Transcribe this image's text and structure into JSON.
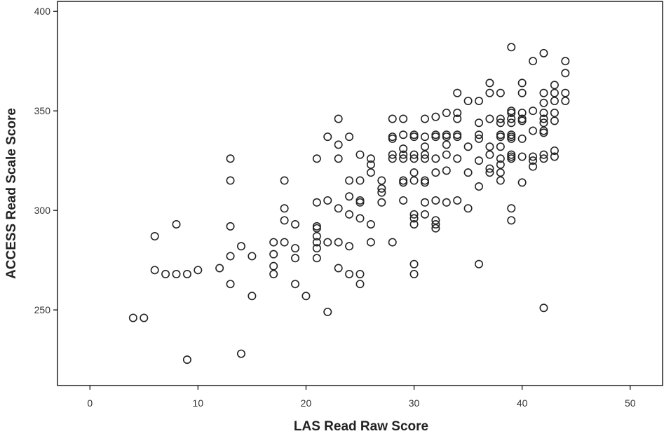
{
  "chart_data": {
    "type": "scatter",
    "title": "",
    "xlabel": "LAS Read Raw Score",
    "ylabel": "ACCESS Read Scale Score",
    "xlim": [
      -3,
      53
    ],
    "ylim": [
      212,
      405
    ],
    "xticks": [
      0,
      10,
      20,
      30,
      40,
      50
    ],
    "yticks": [
      250,
      300,
      350,
      400
    ],
    "grid": false,
    "legend": "none",
    "marker": "open-circle",
    "colors": {
      "marker": "#222222",
      "frame": "#000000",
      "background": "#ffffff"
    },
    "series": [
      {
        "points": [
          [
            4,
            246
          ],
          [
            5,
            246
          ],
          [
            6,
            287
          ],
          [
            6,
            270
          ],
          [
            7,
            268
          ],
          [
            8,
            268
          ],
          [
            8,
            293
          ],
          [
            9,
            268
          ],
          [
            9,
            225
          ],
          [
            10,
            270
          ],
          [
            12,
            271
          ],
          [
            13,
            326
          ],
          [
            13,
            315
          ],
          [
            13,
            292
          ],
          [
            13,
            277
          ],
          [
            13,
            263
          ],
          [
            14,
            282
          ],
          [
            14,
            228
          ],
          [
            15,
            277
          ],
          [
            15,
            257
          ],
          [
            17,
            284
          ],
          [
            17,
            278
          ],
          [
            17,
            272
          ],
          [
            17,
            268
          ],
          [
            18,
            315
          ],
          [
            18,
            301
          ],
          [
            18,
            295
          ],
          [
            18,
            284
          ],
          [
            19,
            293
          ],
          [
            19,
            281
          ],
          [
            19,
            276
          ],
          [
            19,
            263
          ],
          [
            20,
            257
          ],
          [
            21,
            326
          ],
          [
            21,
            304
          ],
          [
            21,
            292
          ],
          [
            21,
            291
          ],
          [
            21,
            287
          ],
          [
            21,
            284
          ],
          [
            21,
            281
          ],
          [
            21,
            276
          ],
          [
            22,
            337
          ],
          [
            22,
            305
          ],
          [
            22,
            284
          ],
          [
            22,
            249
          ],
          [
            23,
            346
          ],
          [
            23,
            333
          ],
          [
            23,
            326
          ],
          [
            23,
            301
          ],
          [
            23,
            284
          ],
          [
            23,
            271
          ],
          [
            24,
            337
          ],
          [
            24,
            315
          ],
          [
            24,
            307
          ],
          [
            24,
            298
          ],
          [
            24,
            282
          ],
          [
            24,
            268
          ],
          [
            25,
            328
          ],
          [
            25,
            315
          ],
          [
            25,
            305
          ],
          [
            25,
            304
          ],
          [
            25,
            296
          ],
          [
            25,
            268
          ],
          [
            25,
            263
          ],
          [
            26,
            326
          ],
          [
            26,
            323
          ],
          [
            26,
            319
          ],
          [
            26,
            293
          ],
          [
            26,
            284
          ],
          [
            27,
            315
          ],
          [
            27,
            311
          ],
          [
            27,
            309
          ],
          [
            27,
            304
          ],
          [
            28,
            346
          ],
          [
            28,
            337
          ],
          [
            28,
            336
          ],
          [
            28,
            328
          ],
          [
            28,
            326
          ],
          [
            28,
            284
          ],
          [
            29,
            346
          ],
          [
            29,
            338
          ],
          [
            29,
            331
          ],
          [
            29,
            328
          ],
          [
            29,
            326
          ],
          [
            29,
            315
          ],
          [
            29,
            314
          ],
          [
            29,
            305
          ],
          [
            30,
            338
          ],
          [
            30,
            337
          ],
          [
            30,
            328
          ],
          [
            30,
            326
          ],
          [
            30,
            319
          ],
          [
            30,
            315
          ],
          [
            30,
            298
          ],
          [
            30,
            296
          ],
          [
            30,
            293
          ],
          [
            30,
            273
          ],
          [
            30,
            268
          ],
          [
            31,
            346
          ],
          [
            31,
            337
          ],
          [
            31,
            332
          ],
          [
            31,
            328
          ],
          [
            31,
            326
          ],
          [
            31,
            315
          ],
          [
            31,
            314
          ],
          [
            31,
            304
          ],
          [
            31,
            298
          ],
          [
            32,
            347
          ],
          [
            32,
            338
          ],
          [
            32,
            337
          ],
          [
            32,
            326
          ],
          [
            32,
            319
          ],
          [
            32,
            305
          ],
          [
            32,
            295
          ],
          [
            32,
            293
          ],
          [
            32,
            291
          ],
          [
            33,
            349
          ],
          [
            33,
            338
          ],
          [
            33,
            337
          ],
          [
            33,
            333
          ],
          [
            33,
            328
          ],
          [
            33,
            320
          ],
          [
            33,
            304
          ],
          [
            34,
            359
          ],
          [
            34,
            349
          ],
          [
            34,
            346
          ],
          [
            34,
            338
          ],
          [
            34,
            337
          ],
          [
            34,
            326
          ],
          [
            34,
            305
          ],
          [
            35,
            355
          ],
          [
            35,
            332
          ],
          [
            35,
            319
          ],
          [
            35,
            301
          ],
          [
            36,
            355
          ],
          [
            36,
            344
          ],
          [
            36,
            338
          ],
          [
            36,
            336
          ],
          [
            36,
            325
          ],
          [
            36,
            312
          ],
          [
            36,
            273
          ],
          [
            37,
            364
          ],
          [
            37,
            359
          ],
          [
            37,
            346
          ],
          [
            37,
            332
          ],
          [
            37,
            328
          ],
          [
            37,
            321
          ],
          [
            37,
            319
          ],
          [
            38,
            359
          ],
          [
            38,
            346
          ],
          [
            38,
            344
          ],
          [
            38,
            338
          ],
          [
            38,
            337
          ],
          [
            38,
            332
          ],
          [
            38,
            326
          ],
          [
            38,
            323
          ],
          [
            38,
            319
          ],
          [
            38,
            315
          ],
          [
            39,
            382
          ],
          [
            39,
            350
          ],
          [
            39,
            349
          ],
          [
            39,
            346
          ],
          [
            39,
            344
          ],
          [
            39,
            338
          ],
          [
            39,
            337
          ],
          [
            39,
            336
          ],
          [
            39,
            328
          ],
          [
            39,
            327
          ],
          [
            39,
            326
          ],
          [
            39,
            301
          ],
          [
            39,
            295
          ],
          [
            40,
            364
          ],
          [
            40,
            359
          ],
          [
            40,
            349
          ],
          [
            40,
            346
          ],
          [
            40,
            345
          ],
          [
            40,
            336
          ],
          [
            40,
            327
          ],
          [
            40,
            314
          ],
          [
            41,
            375
          ],
          [
            41,
            350
          ],
          [
            41,
            340
          ],
          [
            41,
            327
          ],
          [
            41,
            325
          ],
          [
            41,
            322
          ],
          [
            42,
            379
          ],
          [
            42,
            359
          ],
          [
            42,
            354
          ],
          [
            42,
            349
          ],
          [
            42,
            346
          ],
          [
            42,
            344
          ],
          [
            42,
            340
          ],
          [
            42,
            339
          ],
          [
            42,
            328
          ],
          [
            42,
            326
          ],
          [
            42,
            251
          ],
          [
            43,
            363
          ],
          [
            43,
            359
          ],
          [
            43,
            355
          ],
          [
            43,
            349
          ],
          [
            43,
            345
          ],
          [
            43,
            330
          ],
          [
            43,
            327
          ],
          [
            44,
            375
          ],
          [
            44,
            369
          ],
          [
            44,
            359
          ],
          [
            44,
            355
          ]
        ]
      }
    ]
  }
}
